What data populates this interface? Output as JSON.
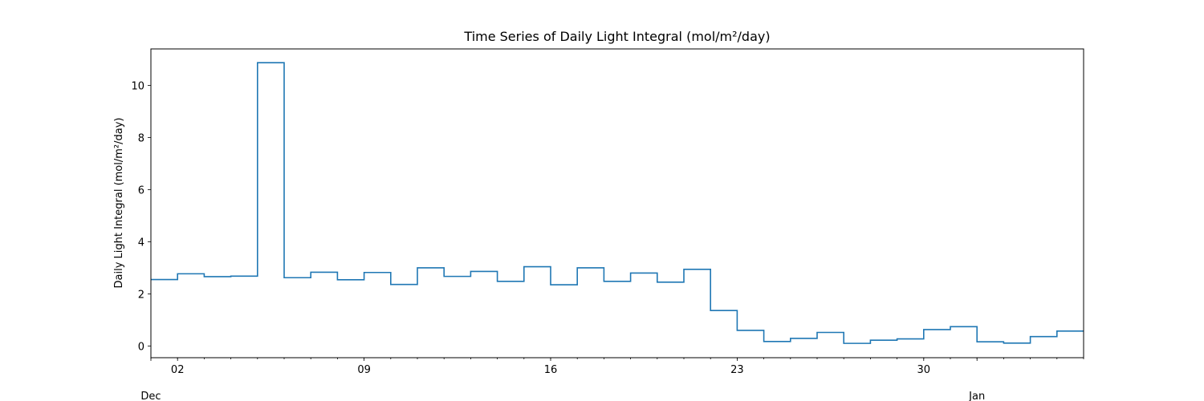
{
  "chart_data": {
    "type": "line",
    "title": "Time Series of Daily Light Integral (mol/m²/day)",
    "xlabel": "",
    "ylabel": "Daily Light Integral (mol/m²/day)",
    "drawstyle": "steps-post",
    "line_color": "#1f77b4",
    "grid": false,
    "xlim": [
      "2024-12-01",
      "2025-01-05"
    ],
    "ylim": [
      -0.45,
      11.4
    ],
    "x_major_ticks": [
      {
        "date": "2024-12-02",
        "label": "02"
      },
      {
        "date": "2024-12-09",
        "label": "09"
      },
      {
        "date": "2024-12-16",
        "label": "16"
      },
      {
        "date": "2024-12-23",
        "label": "23"
      },
      {
        "date": "2024-12-30",
        "label": "30"
      }
    ],
    "x_month_labels": [
      {
        "date": "2024-12-01",
        "label": "Dec"
      },
      {
        "date": "2025-01-01",
        "label": "Jan"
      }
    ],
    "y_ticks": [
      0,
      2,
      4,
      6,
      8,
      10
    ],
    "series": [
      {
        "name": "",
        "x": [
          "2024-12-01",
          "2024-12-02",
          "2024-12-03",
          "2024-12-04",
          "2024-12-05",
          "2024-12-06",
          "2024-12-07",
          "2024-12-08",
          "2024-12-09",
          "2024-12-10",
          "2024-12-11",
          "2024-12-12",
          "2024-12-13",
          "2024-12-14",
          "2024-12-15",
          "2024-12-16",
          "2024-12-17",
          "2024-12-18",
          "2024-12-19",
          "2024-12-20",
          "2024-12-21",
          "2024-12-22",
          "2024-12-23",
          "2024-12-24",
          "2024-12-25",
          "2024-12-26",
          "2024-12-27",
          "2024-12-28",
          "2024-12-29",
          "2024-12-30",
          "2024-12-31",
          "2025-01-01",
          "2025-01-02",
          "2025-01-03",
          "2025-01-04",
          "2025-01-05"
        ],
        "y": [
          2.55,
          2.77,
          2.66,
          2.68,
          10.87,
          2.62,
          2.83,
          2.54,
          2.82,
          2.36,
          3.0,
          2.67,
          2.86,
          2.48,
          3.04,
          2.35,
          3.0,
          2.48,
          2.8,
          2.45,
          2.94,
          1.36,
          0.6,
          0.17,
          0.29,
          0.52,
          0.1,
          0.22,
          0.27,
          0.63,
          0.74,
          0.16,
          0.11,
          0.36,
          0.57,
          0.57
        ]
      }
    ]
  }
}
